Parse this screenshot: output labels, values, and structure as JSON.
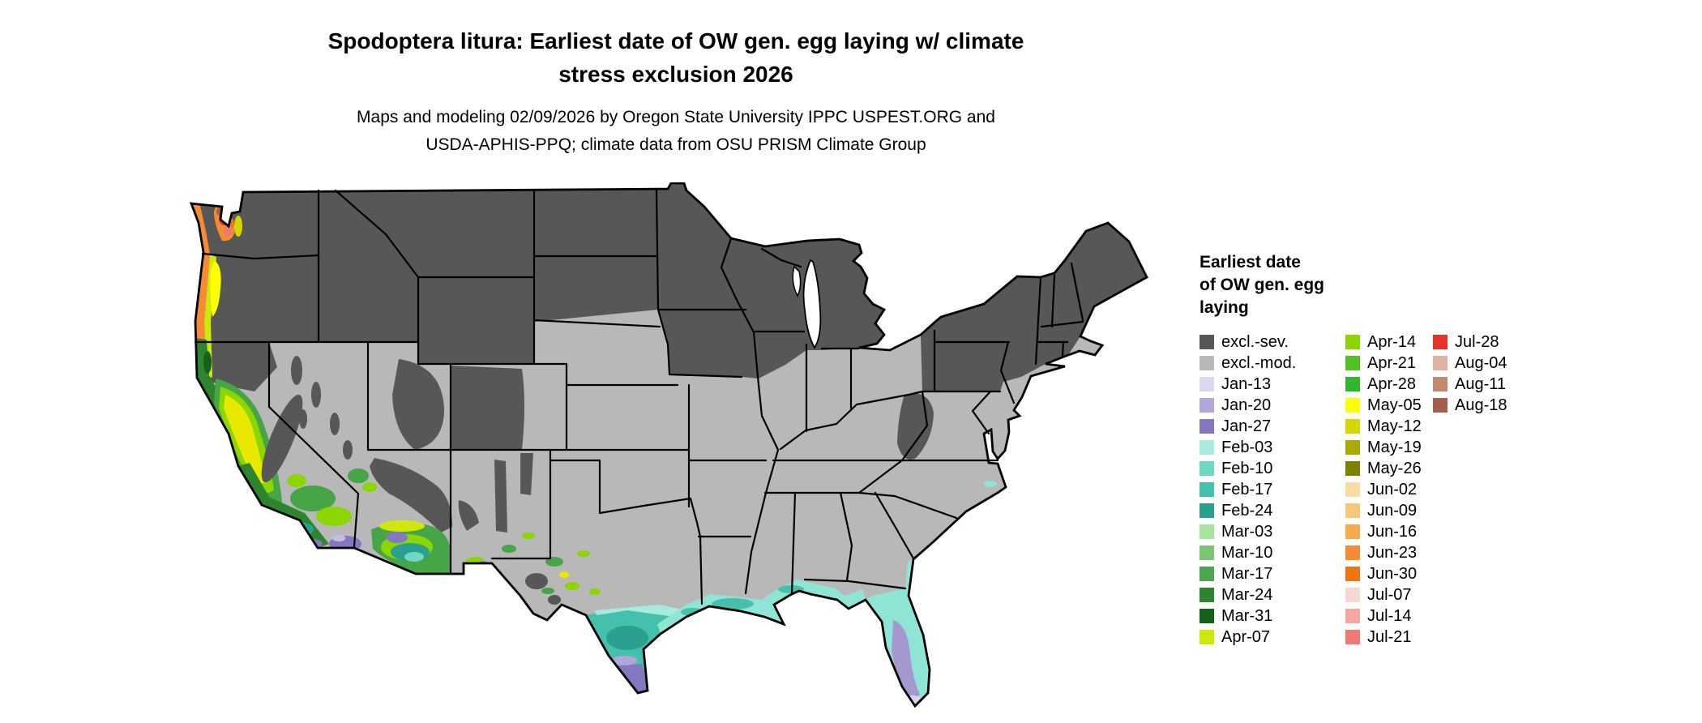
{
  "title": {
    "lines": [
      "Spodoptera litura: Earliest date of OW gen. egg laying w/ climate",
      "stress exclusion 2026"
    ]
  },
  "subtitle": {
    "lines": [
      "Maps and modeling 02/09/2026 by Oregon State University IPPC USPEST.ORG and",
      "USDA-APHIS-PPQ; climate data from OSU PRISM Climate Group"
    ]
  },
  "legend": {
    "title_lines": [
      "Earliest date",
      "of OW gen. egg",
      "laying"
    ],
    "columns": [
      [
        {
          "label": "excl.-sev.",
          "color": "#575757"
        },
        {
          "label": "excl.-mod.",
          "color": "#b8b8b8"
        },
        {
          "label": "Jan-13",
          "color": "#dcd7f0"
        },
        {
          "label": "Jan-20",
          "color": "#b3a6d9"
        },
        {
          "label": "Jan-27",
          "color": "#8577c0"
        },
        {
          "label": "Feb-03",
          "color": "#a5ecdf"
        },
        {
          "label": "Feb-10",
          "color": "#6fd8c4"
        },
        {
          "label": "Feb-17",
          "color": "#45c0ac"
        },
        {
          "label": "Feb-24",
          "color": "#2aa190"
        },
        {
          "label": "Mar-03",
          "color": "#a9e49f"
        },
        {
          "label": "Mar-10",
          "color": "#7ac474"
        },
        {
          "label": "Mar-17",
          "color": "#4ca64c"
        },
        {
          "label": "Mar-24",
          "color": "#2d862d"
        },
        {
          "label": "Mar-31",
          "color": "#14611c"
        },
        {
          "label": "Apr-07",
          "color": "#cfe80c"
        }
      ],
      [
        {
          "label": "Apr-14",
          "color": "#8cd600"
        },
        {
          "label": "Apr-21",
          "color": "#4fc122"
        },
        {
          "label": "Apr-28",
          "color": "#2eb82e"
        },
        {
          "label": "May-05",
          "color": "#ffff00"
        },
        {
          "label": "May-12",
          "color": "#d6d600"
        },
        {
          "label": "May-19",
          "color": "#aaaa00"
        },
        {
          "label": "May-26",
          "color": "#7f7f00"
        },
        {
          "label": "Jun-02",
          "color": "#f7dca4"
        },
        {
          "label": "Jun-09",
          "color": "#f7c878"
        },
        {
          "label": "Jun-16",
          "color": "#f9ab4b"
        },
        {
          "label": "Jun-23",
          "color": "#f68b33"
        },
        {
          "label": "Jun-30",
          "color": "#ef7512"
        },
        {
          "label": "Jul-07",
          "color": "#f6d7d2"
        },
        {
          "label": "Jul-14",
          "color": "#f2a8a0"
        },
        {
          "label": "Jul-21",
          "color": "#ee7a70"
        }
      ],
      [
        {
          "label": "Jul-28",
          "color": "#e8332a"
        },
        {
          "label": "Aug-04",
          "color": "#ddb1a4"
        },
        {
          "label": "Aug-11",
          "color": "#c08970"
        },
        {
          "label": "Aug-18",
          "color": "#a2604c"
        }
      ]
    ]
  },
  "map": {
    "base_excluded_moderate_color": "#b8b8b8",
    "excluded_severe_color": "#575757"
  }
}
